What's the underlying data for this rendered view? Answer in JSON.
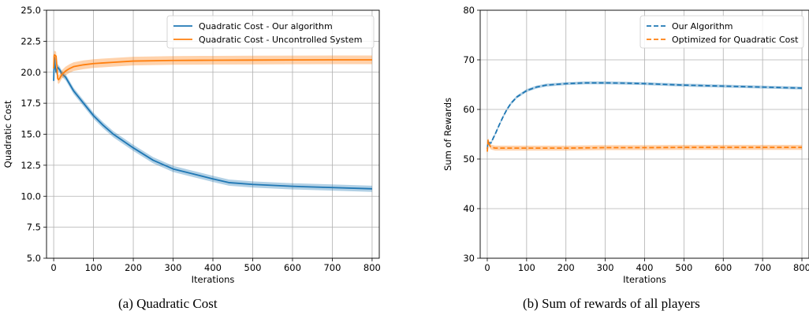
{
  "chart_data": [
    {
      "type": "line",
      "caption": "(a) Quadratic Cost",
      "xlabel": "Iterations",
      "ylabel": "Quadratic Cost",
      "xlim": [
        -18,
        818
      ],
      "ylim": [
        5.0,
        25.0
      ],
      "xticks": [
        0,
        100,
        200,
        300,
        400,
        500,
        600,
        700,
        800
      ],
      "yticks": [
        5.0,
        7.5,
        10.0,
        12.5,
        15.0,
        17.5,
        20.0,
        22.5,
        25.0
      ],
      "ytick_labels": [
        "5.0",
        "7.5",
        "10.0",
        "12.5",
        "15.0",
        "17.5",
        "20.0",
        "22.5",
        "25.0"
      ],
      "grid": true,
      "legend_position": "top-right",
      "series": [
        {
          "name": "Quadratic Cost - Our algorithm",
          "color": "#1f77b4",
          "style": "solid",
          "band": 0.25,
          "x": [
            0,
            1,
            2,
            4,
            6,
            10,
            15,
            20,
            30,
            50,
            75,
            100,
            125,
            150,
            200,
            250,
            300,
            350,
            400,
            440,
            500,
            600,
            700,
            800
          ],
          "y": [
            19.3,
            20.7,
            21.2,
            20.4,
            20.0,
            20.4,
            20.2,
            19.9,
            19.6,
            18.5,
            17.5,
            16.5,
            15.7,
            15.0,
            13.9,
            12.9,
            12.2,
            11.8,
            11.4,
            11.1,
            10.95,
            10.8,
            10.7,
            10.6
          ]
        },
        {
          "name": "Quadratic Cost - Uncontrolled System",
          "color": "#ff7f0e",
          "style": "solid",
          "band": 0.35,
          "x": [
            0,
            1,
            2,
            4,
            6,
            8,
            10,
            12,
            15,
            20,
            30,
            40,
            50,
            75,
            100,
            150,
            200,
            300,
            400,
            500,
            600,
            700,
            800
          ],
          "y": [
            20.3,
            21.3,
            21.4,
            21.35,
            21.3,
            20.5,
            19.5,
            19.4,
            19.5,
            19.8,
            20.1,
            20.3,
            20.45,
            20.6,
            20.7,
            20.8,
            20.9,
            20.95,
            20.97,
            20.98,
            20.99,
            21.0,
            21.0
          ]
        }
      ]
    },
    {
      "type": "line",
      "caption": "(b) Sum of rewards of all players",
      "xlabel": "Iterations",
      "ylabel": "Sum of Rewards",
      "xlim": [
        -18,
        818
      ],
      "ylim": [
        30,
        80
      ],
      "xticks": [
        0,
        100,
        200,
        300,
        400,
        500,
        600,
        700,
        800
      ],
      "yticks": [
        30,
        40,
        50,
        60,
        70,
        80
      ],
      "ytick_labels": [
        "30",
        "40",
        "50",
        "60",
        "70",
        "80"
      ],
      "grid": true,
      "legend_position": "top-right",
      "series": [
        {
          "name": "Our Algorithm",
          "color": "#1f77b4",
          "style": "dashed",
          "band": 0.3,
          "x": [
            0,
            2,
            5,
            10,
            15,
            20,
            30,
            40,
            50,
            60,
            75,
            100,
            125,
            150,
            200,
            250,
            300,
            350,
            400,
            500,
            600,
            700,
            800
          ],
          "y": [
            52.0,
            53.5,
            53.2,
            53.3,
            54.2,
            55.0,
            56.8,
            58.5,
            60.0,
            61.2,
            62.5,
            63.8,
            64.5,
            64.9,
            65.2,
            65.35,
            65.35,
            65.3,
            65.2,
            64.9,
            64.7,
            64.5,
            64.3
          ]
        },
        {
          "name": "Optimized for Quadratic Cost",
          "color": "#ff7f0e",
          "style": "dashed",
          "band": 0.5,
          "x": [
            0,
            1,
            2,
            4,
            6,
            8,
            10,
            15,
            20,
            30,
            50,
            100,
            200,
            300,
            400,
            500,
            600,
            700,
            800
          ],
          "y": [
            51.5,
            52.5,
            53.8,
            53.2,
            52.8,
            52.5,
            52.4,
            52.3,
            52.2,
            52.2,
            52.2,
            52.2,
            52.2,
            52.3,
            52.3,
            52.35,
            52.35,
            52.35,
            52.35
          ]
        }
      ]
    }
  ]
}
